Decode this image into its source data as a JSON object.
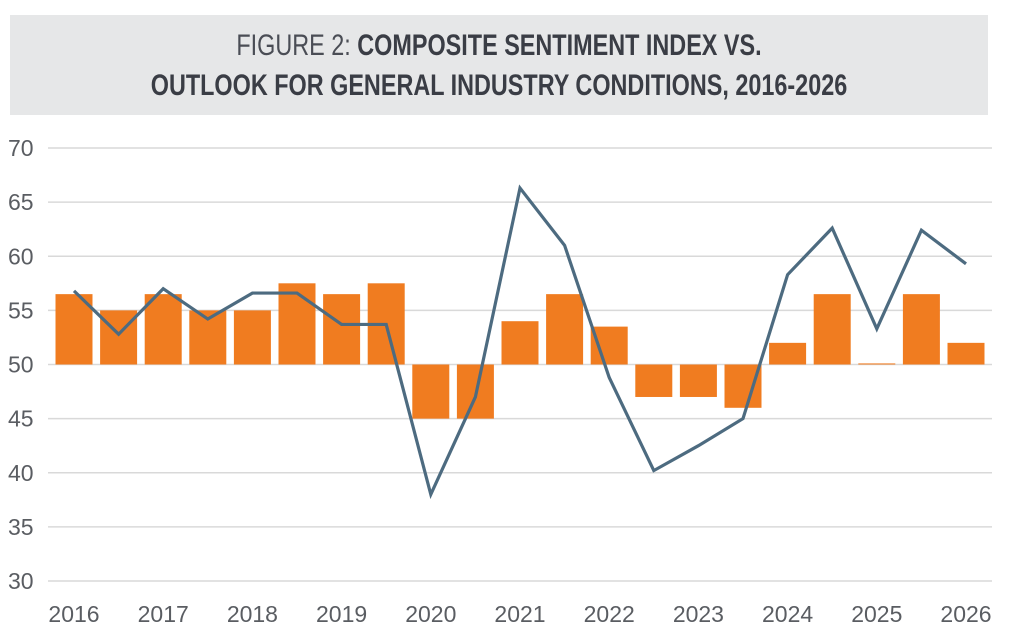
{
  "title": {
    "prefix": "FIGURE 2:",
    "line1_bold": "COMPOSITE SENTIMENT INDEX VS.",
    "line2": "OUTLOOK FOR GENERAL INDUSTRY CONDITIONS, 2016-2026"
  },
  "colors": {
    "bar": "#f07c20",
    "line": "#4d6b80",
    "grid": "#d9d9d9",
    "title_bg": "#e6e7e8"
  },
  "chart_data": {
    "type": "bar+line",
    "title": "FIGURE 2: COMPOSITE SENTIMENT INDEX VS. OUTLOOK FOR GENERAL INDUSTRY CONDITIONS, 2016-2026",
    "xlabel": "",
    "ylabel": "",
    "ylim": [
      30,
      70
    ],
    "baseline": 50,
    "yticks": [
      70,
      65,
      60,
      55,
      50,
      45,
      40,
      35,
      30
    ],
    "xtick_labels": [
      "2016",
      "2017",
      "2018",
      "2019",
      "2020",
      "2021",
      "2022",
      "2023",
      "2024",
      "2025",
      "2026"
    ],
    "grid": true,
    "legend": "none",
    "n_points": 21,
    "series": [
      {
        "name": "Outlook for General Industry Conditions",
        "type": "bar",
        "values": [
          56.5,
          55.0,
          56.5,
          55.0,
          55.0,
          57.5,
          56.5,
          57.5,
          45.0,
          45.0,
          54.0,
          56.5,
          53.5,
          47.0,
          47.0,
          46.0,
          52.0,
          56.5,
          50.1,
          56.5,
          52.0
        ]
      },
      {
        "name": "Composite Sentiment Index",
        "type": "line",
        "values": [
          56.8,
          52.8,
          57.0,
          54.2,
          56.6,
          56.6,
          53.7,
          53.7,
          38.0,
          47.0,
          66.3,
          61.0,
          48.8,
          40.2,
          42.5,
          45.0,
          58.3,
          62.6,
          53.3,
          62.4,
          59.3
        ]
      }
    ]
  }
}
